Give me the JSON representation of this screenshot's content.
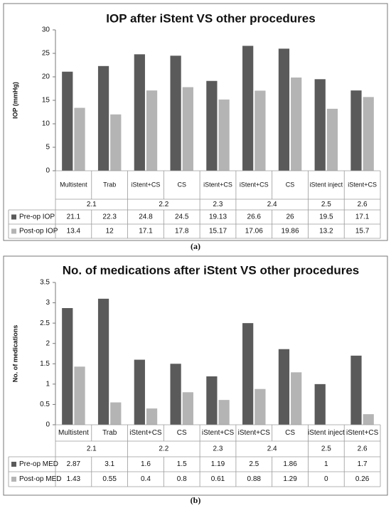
{
  "chart_data": [
    {
      "type": "bar",
      "title": "IOP after iStent VS other procedures",
      "y_label": "IOP (mmHg)",
      "caption": "(a)",
      "groups": [
        {
          "label": "2.1",
          "categories": [
            "Multistent",
            "Trab"
          ]
        },
        {
          "label": "2.2",
          "categories": [
            "iStent+CS",
            "CS"
          ]
        },
        {
          "label": "2.3",
          "categories": [
            "iStent+CS"
          ]
        },
        {
          "label": "2.4",
          "categories": [
            "iStent+CS",
            "CS"
          ]
        },
        {
          "label": "2.5",
          "categories": [
            "iStent inject"
          ]
        },
        {
          "label": "2.6",
          "categories": [
            "iStent+CS"
          ]
        }
      ],
      "series": [
        {
          "name": "Pre-op IOP",
          "color": "#5a5a5a",
          "values": [
            21.1,
            22.3,
            24.8,
            24.5,
            19.13,
            26.6,
            26,
            19.5,
            17.1
          ]
        },
        {
          "name": "Post-op IOP",
          "color": "#b4b4b4",
          "values": [
            13.4,
            12,
            17.1,
            17.8,
            15.17,
            17.06,
            19.86,
            13.2,
            15.7
          ]
        }
      ],
      "ylim": [
        0,
        30
      ],
      "yticks": [
        0,
        5,
        10,
        15,
        20,
        25,
        30
      ]
    },
    {
      "type": "bar",
      "title": "No. of medications after iStent VS other procedures",
      "y_label": "No. of medications",
      "caption": "(b)",
      "groups": [
        {
          "label": "2.1",
          "categories": [
            "Multistent",
            "Trab"
          ]
        },
        {
          "label": "2.2",
          "categories": [
            "iStent+CS",
            "CS"
          ]
        },
        {
          "label": "2.3",
          "categories": [
            "iStent+CS"
          ]
        },
        {
          "label": "2.4",
          "categories": [
            "iStent+CS",
            "CS"
          ]
        },
        {
          "label": "2.5",
          "categories": [
            "iStent inject"
          ]
        },
        {
          "label": "2.6",
          "categories": [
            "iStent+CS"
          ]
        }
      ],
      "series": [
        {
          "name": "Pre-op MED",
          "color": "#5a5a5a",
          "values": [
            2.87,
            3.1,
            1.6,
            1.5,
            1.19,
            2.5,
            1.86,
            1,
            1.7
          ]
        },
        {
          "name": "Post-op MED",
          "color": "#b4b4b4",
          "values": [
            1.43,
            0.55,
            0.4,
            0.8,
            0.61,
            0.88,
            1.29,
            0,
            0.26
          ]
        }
      ],
      "ylim": [
        0,
        3.5
      ],
      "yticks": [
        0,
        0.5,
        1,
        1.5,
        2,
        2.5,
        3,
        3.5
      ]
    }
  ]
}
